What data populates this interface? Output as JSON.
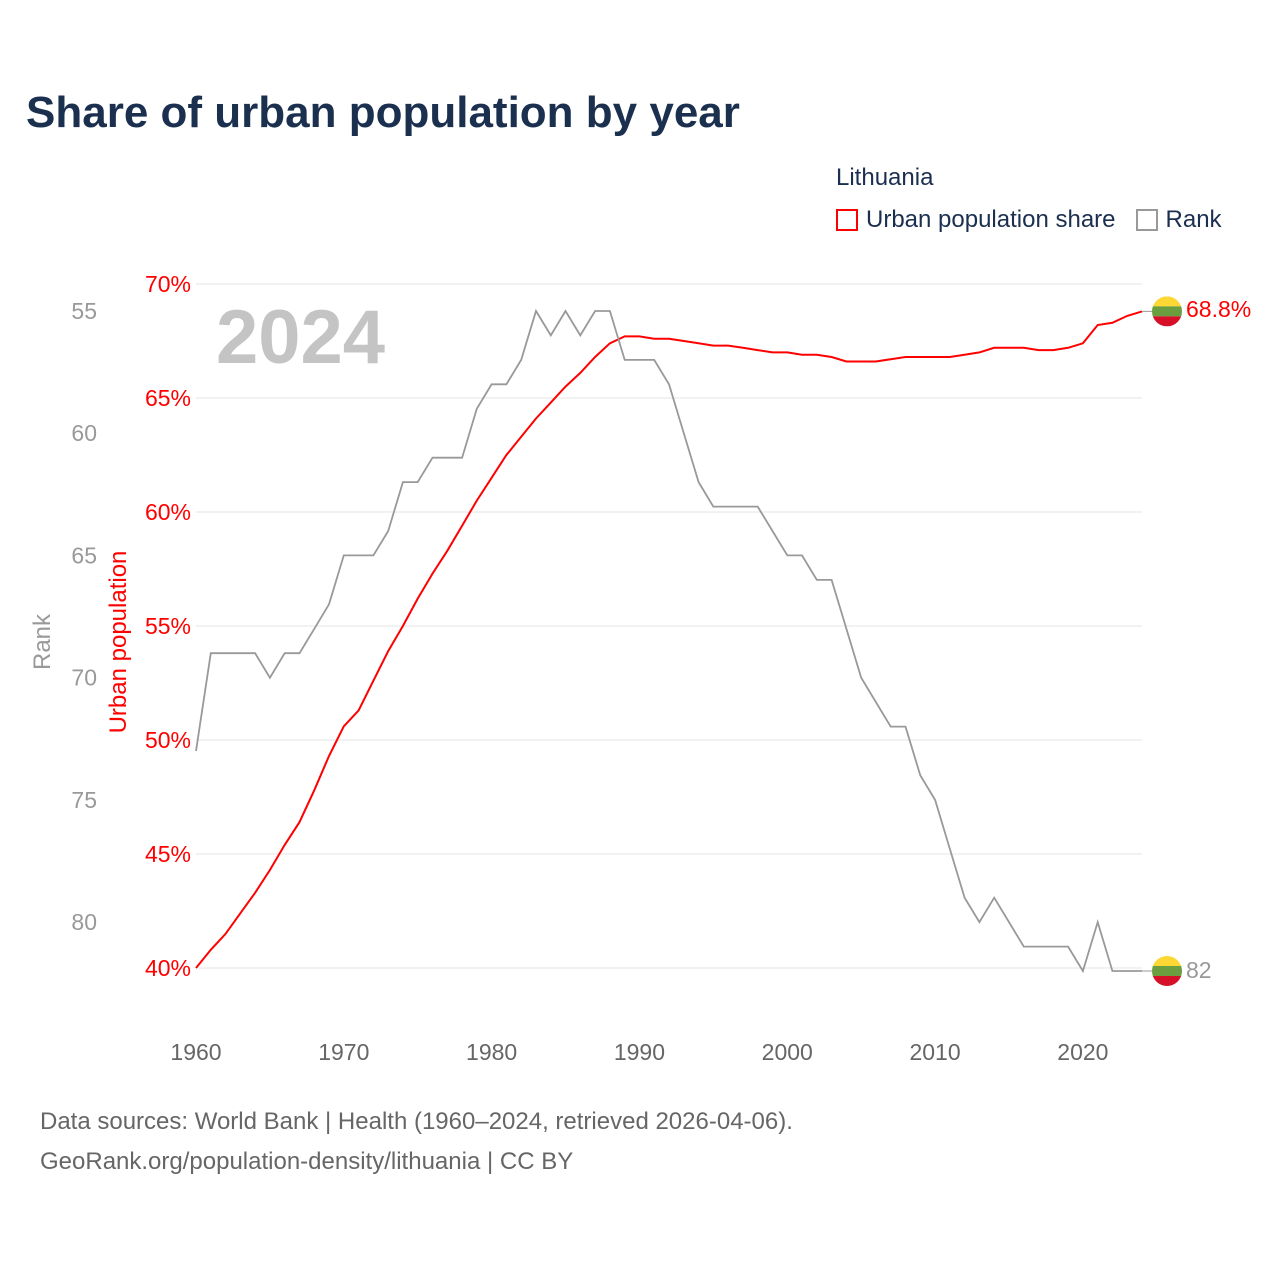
{
  "title": "Share of urban population by year",
  "legend": {
    "title": "Lithuania",
    "items": [
      {
        "label": "Urban population share",
        "color": "#ff0000"
      },
      {
        "label": "Rank",
        "color": "#999999"
      }
    ]
  },
  "year_watermark": "2024",
  "footer": {
    "line1": "Data sources: World Bank | Health (1960–2024, retrieved 2026-04-06).",
    "line2": "GeoRank.org/population-density/lithuania | CC BY"
  },
  "chart_data": {
    "type": "line",
    "title": "Share of urban population by year",
    "xlabel": "",
    "ylabel_left_inner": "Urban population",
    "ylabel_left_outer": "Rank",
    "xlim": [
      1960,
      2024
    ],
    "ylim_share": [
      40,
      70
    ],
    "ylim_rank": [
      55,
      82
    ],
    "x_ticks": [
      "1960",
      "1970",
      "1980",
      "1990",
      "2000",
      "2010",
      "2020"
    ],
    "share_ticks": [
      "40%",
      "45%",
      "50%",
      "55%",
      "60%",
      "65%",
      "70%"
    ],
    "rank_ticks": [
      "55",
      "60",
      "65",
      "70",
      "75",
      "80"
    ],
    "grid": true,
    "legend_placement": "top-right",
    "end_labels": {
      "share": "68.8%",
      "rank": "82"
    },
    "x": [
      1960,
      1961,
      1962,
      1963,
      1964,
      1965,
      1966,
      1967,
      1968,
      1969,
      1970,
      1971,
      1972,
      1973,
      1974,
      1975,
      1976,
      1977,
      1978,
      1979,
      1980,
      1981,
      1982,
      1983,
      1984,
      1985,
      1986,
      1987,
      1988,
      1989,
      1990,
      1991,
      1992,
      1993,
      1994,
      1995,
      1996,
      1997,
      1998,
      1999,
      2000,
      2001,
      2002,
      2003,
      2004,
      2005,
      2006,
      2007,
      2008,
      2009,
      2010,
      2011,
      2012,
      2013,
      2014,
      2015,
      2016,
      2017,
      2018,
      2019,
      2020,
      2021,
      2022,
      2023,
      2024
    ],
    "series": [
      {
        "name": "Urban population share",
        "color": "#ff0000",
        "values": [
          40.0,
          40.8,
          41.5,
          42.4,
          43.3,
          44.3,
          45.4,
          46.4,
          47.8,
          49.3,
          50.6,
          51.3,
          52.6,
          53.9,
          55.0,
          56.2,
          57.3,
          58.3,
          59.4,
          60.5,
          61.5,
          62.5,
          63.3,
          64.1,
          64.8,
          65.5,
          66.1,
          66.8,
          67.4,
          67.7,
          67.7,
          67.6,
          67.6,
          67.5,
          67.4,
          67.3,
          67.3,
          67.2,
          67.1,
          67.0,
          67.0,
          66.9,
          66.9,
          66.8,
          66.6,
          66.6,
          66.6,
          66.7,
          66.8,
          66.8,
          66.8,
          66.8,
          66.9,
          67.0,
          67.2,
          67.2,
          67.2,
          67.1,
          67.1,
          67.2,
          67.4,
          68.2,
          68.3,
          68.6,
          68.8
        ]
      },
      {
        "name": "Rank",
        "color": "#999999",
        "values": [
          73,
          69,
          69,
          69,
          69,
          70,
          69,
          69,
          68,
          67,
          65,
          65,
          65,
          64,
          62,
          62,
          61,
          61,
          61,
          59,
          58,
          58,
          57,
          55,
          56,
          55,
          56,
          55,
          55,
          57,
          57,
          57,
          58,
          60,
          62,
          63,
          63,
          63,
          63,
          64,
          65,
          65,
          66,
          66,
          68,
          70,
          71,
          72,
          72,
          74,
          75,
          77,
          79,
          80,
          79,
          80,
          81,
          81,
          81,
          81,
          82,
          80,
          82,
          82,
          82
        ]
      }
    ]
  }
}
